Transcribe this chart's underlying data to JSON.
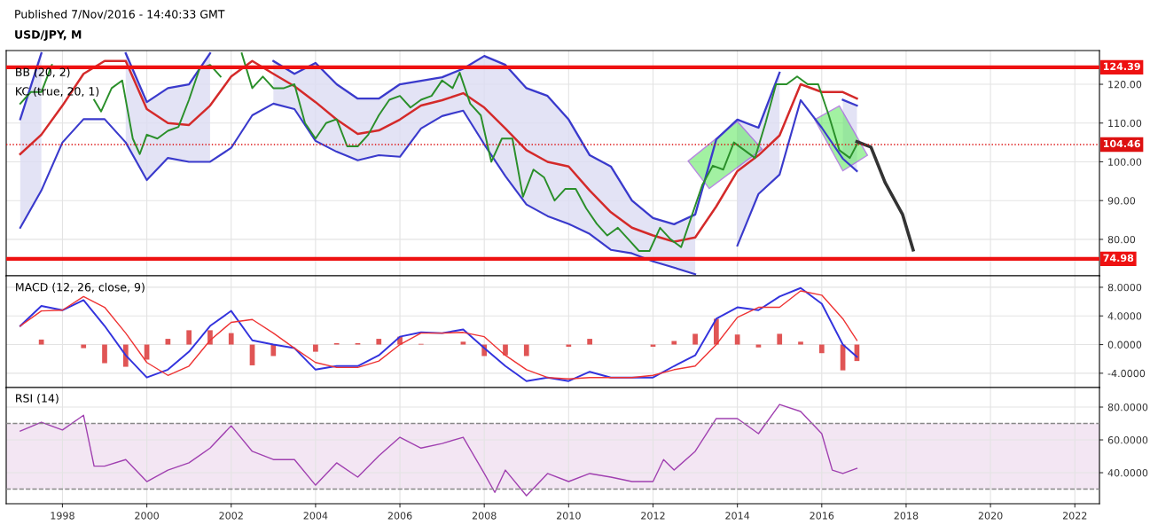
{
  "chart_data": [
    {
      "type": "line",
      "title": "USD/JPY, M",
      "annotations": [
        "Published 7/Nov/2016 - 14:40:33 GMT",
        "BB (20, 2)",
        "KC (true, 20, 1)"
      ],
      "series": [
        {
          "type": "line",
          "color": "#d42a2a",
          "x": [
            "1997-01",
            "1997-07",
            "1998-01",
            "1998-07",
            "1999-01",
            "1999-07",
            "2000-01",
            "2000-07",
            "2001-01",
            "2001-07",
            "2002-01",
            "2002-07",
            "2003-01",
            "2003-07",
            "2004-01",
            "2004-07",
            "2005-01",
            "2005-07",
            "2006-01",
            "2006-07",
            "2007-01",
            "2007-07",
            "2008-01",
            "2008-07",
            "2009-01",
            "2009-07",
            "2010-01",
            "2010-07",
            "2011-01",
            "2011-07",
            "2012-01",
            "2012-07",
            "2013-01",
            "2013-07",
            "2014-01",
            "2014-07",
            "2015-01",
            "2015-07",
            "2016-01",
            "2016-07",
            "2016-11"
          ],
          "values": [
            102,
            107,
            114.5,
            122.7,
            126,
            126,
            113.6,
            110,
            109.5,
            114.5,
            122,
            126,
            122.7,
            119.5,
            115.4,
            110.9,
            107.2,
            108.1,
            110.9,
            114.5,
            115.9,
            117.7,
            114,
            108.6,
            103,
            100,
            98.8,
            92.6,
            87,
            83,
            81,
            79.4,
            80.5,
            88.5,
            97.6,
            101.7,
            106.8,
            120,
            118,
            118,
            116.3
          ],
          "upper": [
            111,
            128,
            null,
            null,
            null,
            128,
            115.4,
            119,
            120,
            128,
            null,
            null,
            126,
            122.7,
            125.5,
            120,
            116.3,
            116.3,
            120,
            120.9,
            121.8,
            124,
            127.3,
            125,
            119,
            117,
            110.9,
            101.7,
            98.8,
            90,
            85.5,
            83.9,
            86.4,
            null,
            110.9,
            108.8,
            123,
            null,
            null,
            116,
            114.5
          ],
          "lower": [
            83,
            92.6,
            null,
            null,
            null,
            105,
            95.3,
            101,
            100,
            100,
            null,
            null,
            115,
            113.6,
            105.4,
            102.6,
            100.4,
            101.7,
            101.3,
            108.6,
            111.8,
            113.2,
            104.5,
            96.3,
            89,
            86,
            84,
            81.4,
            77.3,
            76.4,
            74.3,
            72.7,
            71,
            null,
            78.4,
            91.7,
            96.7,
            null,
            null,
            100.8,
            97.6
          ]
        },
        {
          "type": "line",
          "color": "#3a3acc",
          "x": [
            "1997-01",
            "1997-07",
            "1998-01",
            "1998-07",
            "1999-01",
            "1999-07",
            "2000-01",
            "2000-07",
            "2001-01",
            "2001-07",
            "2002-01",
            "2002-07",
            "2003-01",
            "2003-07",
            "2004-01",
            "2004-07",
            "2005-01",
            "2005-07",
            "2006-01",
            "2006-07",
            "2007-01",
            "2007-07",
            "2008-01",
            "2008-07",
            "2009-01",
            "2009-07",
            "2010-01",
            "2010-07",
            "2011-01",
            "2011-07",
            "2012-01",
            "2012-07",
            "2013-01",
            "2013-07",
            "2014-01",
            "2014-07",
            "2015-01",
            "2015-07",
            "2016-01",
            "2016-07",
            "2016-11"
          ],
          "values": [
            111,
            128,
            null,
            null,
            null,
            128,
            115.4,
            119,
            120,
            128,
            null,
            null,
            126,
            122.7,
            125.5,
            120,
            116.3,
            116.3,
            120,
            120.9,
            121.8,
            124,
            127.3,
            125,
            119,
            117,
            110.9,
            101.7,
            98.8,
            90,
            85.5,
            83.9,
            86.4,
            105.8,
            110.9,
            108.8,
            123,
            null,
            null,
            116,
            114.5
          ]
        },
        {
          "type": "line",
          "color": "#3a3acc",
          "x": [
            "1997-01",
            "1997-07",
            "1998-01",
            "1998-07",
            "1999-01",
            "1999-07",
            "2000-01",
            "2000-07",
            "2001-01",
            "2001-07",
            "2002-01",
            "2002-07",
            "2003-01",
            "2003-07",
            "2004-01",
            "2004-07",
            "2005-01",
            "2005-07",
            "2006-01",
            "2006-07",
            "2007-01",
            "2007-07",
            "2008-01",
            "2008-07",
            "2009-01",
            "2009-07",
            "2010-01",
            "2010-07",
            "2011-01",
            "2011-07",
            "2012-01",
            "2012-07",
            "2013-01",
            "2013-07",
            "2014-01",
            "2014-07",
            "2015-01",
            "2015-07",
            "2016-01",
            "2016-07",
            "2016-11"
          ],
          "values": [
            83,
            92.6,
            105,
            111,
            111,
            105,
            95.3,
            101,
            100,
            100,
            103.6,
            112,
            115,
            113.6,
            105.4,
            102.6,
            100.4,
            101.7,
            101.3,
            108.6,
            111.8,
            113.2,
            104.5,
            96.3,
            89,
            86,
            84,
            81.4,
            77.3,
            76.4,
            74.3,
            72.7,
            71,
            null,
            78.4,
            91.7,
            96.7,
            115.9,
            108.8,
            100.8,
            97.6
          ]
        },
        {
          "type": "line",
          "color": "#2a8f2a",
          "x": [
            "1997-01",
            "1997-04",
            "1997-07",
            "1997-10",
            "1998-01",
            "1998-04",
            "1998-07",
            "1998-10",
            "1998-12",
            "1999-03",
            "1999-06",
            "1999-09",
            "1999-11",
            "2000-01",
            "2000-04",
            "2000-07",
            "2000-10",
            "2001-01",
            "2001-04",
            "2001-07",
            "2001-10",
            "2002-01",
            "2002-04",
            "2002-07",
            "2002-10",
            "2003-01",
            "2003-04",
            "2003-07",
            "2003-10",
            "2004-01",
            "2004-04",
            "2004-07",
            "2004-10",
            "2005-01",
            "2005-04",
            "2005-07",
            "2005-10",
            "2006-01",
            "2006-04",
            "2006-07",
            "2006-10",
            "2007-01",
            "2007-04",
            "2007-06",
            "2007-09",
            "2007-12",
            "2008-03",
            "2008-06",
            "2008-09",
            "2008-12",
            "2009-03",
            "2009-06",
            "2009-09",
            "2009-12",
            "2010-03",
            "2010-06",
            "2010-09",
            "2010-12",
            "2011-03",
            "2011-06",
            "2011-09",
            "2011-12",
            "2012-03",
            "2012-06",
            "2012-09",
            "2012-12",
            "2013-03",
            "2013-06",
            "2013-09",
            "2013-12",
            "2014-03",
            "2014-06",
            "2014-09",
            "2014-12",
            "2015-03",
            "2015-06",
            "2015-09",
            "2015-12",
            "2016-03",
            "2016-06",
            "2016-09",
            "2016-11"
          ],
          "values": [
            115,
            118,
            118,
            125,
            null,
            null,
            null,
            116,
            113,
            119,
            121,
            106,
            102,
            107,
            106,
            108,
            109,
            116,
            124,
            125,
            122,
            null,
            128,
            119,
            122,
            119,
            119,
            120,
            110,
            106,
            110,
            111,
            104,
            104,
            107,
            112,
            116,
            117,
            114,
            116,
            117,
            121,
            119,
            123,
            115,
            112,
            100,
            106,
            106,
            91,
            98,
            96,
            90,
            93,
            93,
            88,
            84,
            81,
            83,
            80,
            77,
            77,
            83,
            80,
            78,
            86,
            94,
            99,
            98,
            105,
            103,
            101,
            110,
            120,
            120,
            122,
            120,
            120,
            112,
            103,
            101,
            104.5
          ]
        },
        {
          "type": "line",
          "color": "#333333",
          "x": [
            "2016-11",
            "2017-03",
            "2017-07",
            "2017-12",
            "2018-03"
          ],
          "values": [
            105.2,
            103.8,
            94.7,
            86.4,
            77.3
          ]
        },
        {
          "type": "area",
          "color": "#66e866",
          "x": [
            "2012-11",
            "2014-01",
            "2014-08",
            "2013-05"
          ],
          "values": [
            100.2,
            110.4,
            103.3,
            93.1
          ]
        },
        {
          "type": "area",
          "color": "#66e866",
          "x": [
            "2015-11",
            "2016-06",
            "2017-02",
            "2016-07"
          ],
          "values": [
            110.9,
            114.4,
            101.7,
            97.7
          ]
        }
      ],
      "xlim": [
        "1996-09",
        "2022-08"
      ],
      "xticks": [
        "1998",
        "2000",
        "2002",
        "2004",
        "2006",
        "2008",
        "2010",
        "2012",
        "2014",
        "2016",
        "2018",
        "2020",
        "2022"
      ],
      "ylim": [
        70.6,
        128.7
      ],
      "yticks": [
        {
          "value": 80,
          "label": "80.00"
        },
        {
          "value": 90,
          "label": "90.00"
        },
        {
          "value": 100,
          "label": "100.00"
        },
        {
          "value": 110,
          "label": "110.00"
        },
        {
          "value": 120,
          "label": "120.00"
        }
      ],
      "ref_lines": [
        {
          "axis": "y",
          "value": 124.39,
          "label": "124.39",
          "color": "#ee1111",
          "line_style": "solid"
        },
        {
          "axis": "y",
          "value": 74.98,
          "label": "74.98",
          "color": "#ee1111",
          "line_style": "solid"
        },
        {
          "axis": "y",
          "value": 104.46,
          "label": "104.46",
          "color": "#dd1111",
          "line_style": "dotted"
        }
      ],
      "tick_labels": "y",
      "grid": true
    },
    {
      "type": "line",
      "title": "MACD (12, 26, close, 9)",
      "x": [
        "1997-01",
        "1997-07",
        "1998-01",
        "1998-07",
        "1999-01",
        "1999-07",
        "2000-01",
        "2000-07",
        "2001-01",
        "2001-07",
        "2002-01",
        "2002-07",
        "2003-01",
        "2003-07",
        "2004-01",
        "2004-07",
        "2005-01",
        "2005-07",
        "2006-01",
        "2006-07",
        "2007-01",
        "2007-07",
        "2008-01",
        "2008-07",
        "2009-01",
        "2009-07",
        "2010-01",
        "2010-07",
        "2011-01",
        "2011-07",
        "2012-01",
        "2012-07",
        "2013-01",
        "2013-07",
        "2014-01",
        "2014-07",
        "2015-01",
        "2015-07",
        "2016-01",
        "2016-07",
        "2016-11"
      ],
      "series": [
        {
          "type": "bar",
          "color": "#e05555",
          "values": [
            0,
            0.7,
            0,
            -0.5,
            -2.6,
            -3.1,
            -2.1,
            0.8,
            2.0,
            2.0,
            1.6,
            -2.9,
            -1.6,
            0,
            -1.0,
            0.2,
            0.2,
            0.8,
            1.1,
            0.1,
            0,
            0.4,
            -1.6,
            -1.5,
            -1.6,
            0,
            -0.3,
            0.8,
            0,
            0,
            -0.3,
            0.5,
            1.5,
            3.6,
            1.4,
            -0.4,
            1.5,
            0.4,
            -1.2,
            -3.6,
            -2.3
          ]
        },
        {
          "type": "line",
          "color": "#3333dd",
          "values": [
            2.6,
            5.4,
            4.8,
            6.2,
            2.6,
            -1.5,
            -4.6,
            -3.5,
            -1.0,
            2.6,
            4.7,
            0.6,
            0,
            -0.5,
            -3.5,
            -3.0,
            -3.0,
            -1.5,
            1.1,
            1.7,
            1.6,
            2.1,
            -0.5,
            -3.0,
            -5.1,
            -4.6,
            -5.1,
            -3.8,
            -4.6,
            -4.6,
            -4.6,
            -3.0,
            -1.5,
            3.6,
            5.2,
            4.8,
            6.7,
            7.9,
            5.7,
            0,
            -1.7
          ]
        },
        {
          "type": "line",
          "color": "#ee3333",
          "values": [
            2.6,
            4.7,
            4.8,
            6.7,
            5.2,
            1.6,
            -2.5,
            -4.3,
            -3.0,
            0.6,
            3.1,
            3.5,
            1.6,
            -0.5,
            -2.5,
            -3.2,
            -3.2,
            -2.3,
            0,
            1.6,
            1.6,
            1.7,
            1.1,
            -1.5,
            -3.5,
            -4.6,
            -4.8,
            -4.6,
            -4.6,
            -4.6,
            -4.3,
            -3.5,
            -3.0,
            0,
            3.8,
            5.2,
            5.2,
            7.5,
            6.9,
            3.6,
            0.6
          ]
        }
      ],
      "xlim": [
        "1996-09",
        "2022-08"
      ],
      "xticks": [
        "1998",
        "2000",
        "2002",
        "2004",
        "2006",
        "2008",
        "2010",
        "2012",
        "2014",
        "2016",
        "2018",
        "2020",
        "2022"
      ],
      "ylim": [
        -6.0,
        9.6
      ],
      "yticks": [
        {
          "value": -4,
          "label": "-4.0000"
        },
        {
          "value": 0,
          "label": "0.0000"
        },
        {
          "value": 4,
          "label": "4.0000"
        },
        {
          "value": 8,
          "label": "8.0000"
        }
      ],
      "tick_labels": "y",
      "grid": true
    },
    {
      "type": "line",
      "title": "RSI (14)",
      "series": [
        {
          "type": "line",
          "color": "#a040b0",
          "x": [
            "1997-01",
            "1997-07",
            "1998-01",
            "1998-07",
            "1998-10",
            "1999-01",
            "1999-07",
            "2000-01",
            "2000-07",
            "2001-01",
            "2001-07",
            "2002-01",
            "2002-07",
            "2003-01",
            "2003-07",
            "2004-01",
            "2004-07",
            "2005-01",
            "2005-07",
            "2006-01",
            "2006-07",
            "2007-01",
            "2007-07",
            "2008-01",
            "2008-04",
            "2008-07",
            "2009-01",
            "2009-07",
            "2010-01",
            "2010-07",
            "2011-01",
            "2011-07",
            "2012-01",
            "2012-04",
            "2012-07",
            "2013-01",
            "2013-07",
            "2014-01",
            "2014-07",
            "2015-01",
            "2015-07",
            "2016-01",
            "2016-04",
            "2016-07",
            "2016-11"
          ],
          "values": [
            65.4,
            70.8,
            66,
            75,
            44,
            44,
            48,
            34.6,
            41.6,
            46,
            55,
            68.6,
            53,
            48,
            48,
            32.4,
            46,
            37.3,
            50.3,
            61.6,
            55,
            57.8,
            61.6,
            39.5,
            28,
            41.6,
            26,
            39.5,
            34.6,
            39.5,
            37.3,
            34.6,
            34.6,
            48,
            41.6,
            53,
            73,
            73,
            63.8,
            81.6,
            77.3,
            63.8,
            41.6,
            39.5,
            42.7
          ]
        }
      ],
      "xlim": [
        "1996-09",
        "2022-08"
      ],
      "xticks": [
        "1998",
        "2000",
        "2002",
        "2004",
        "2006",
        "2008",
        "2010",
        "2012",
        "2014",
        "2016",
        "2018",
        "2020",
        "2022"
      ],
      "ylim": [
        21.1,
        91.9
      ],
      "yticks": [
        {
          "value": 40,
          "label": "40.0000"
        },
        {
          "value": 60,
          "label": "60.0000"
        },
        {
          "value": 80,
          "label": "80.0000"
        }
      ],
      "ref_lines": [
        {
          "axis": "y",
          "value": 70,
          "color": "#888888",
          "line_style": "dashed"
        },
        {
          "axis": "y",
          "value": 30,
          "color": "#888888",
          "line_style": "dashed"
        }
      ],
      "bands": [
        {
          "axis": "y",
          "from": 30,
          "to": 70,
          "color": "#f3e6f3"
        }
      ],
      "grid": true
    }
  ]
}
